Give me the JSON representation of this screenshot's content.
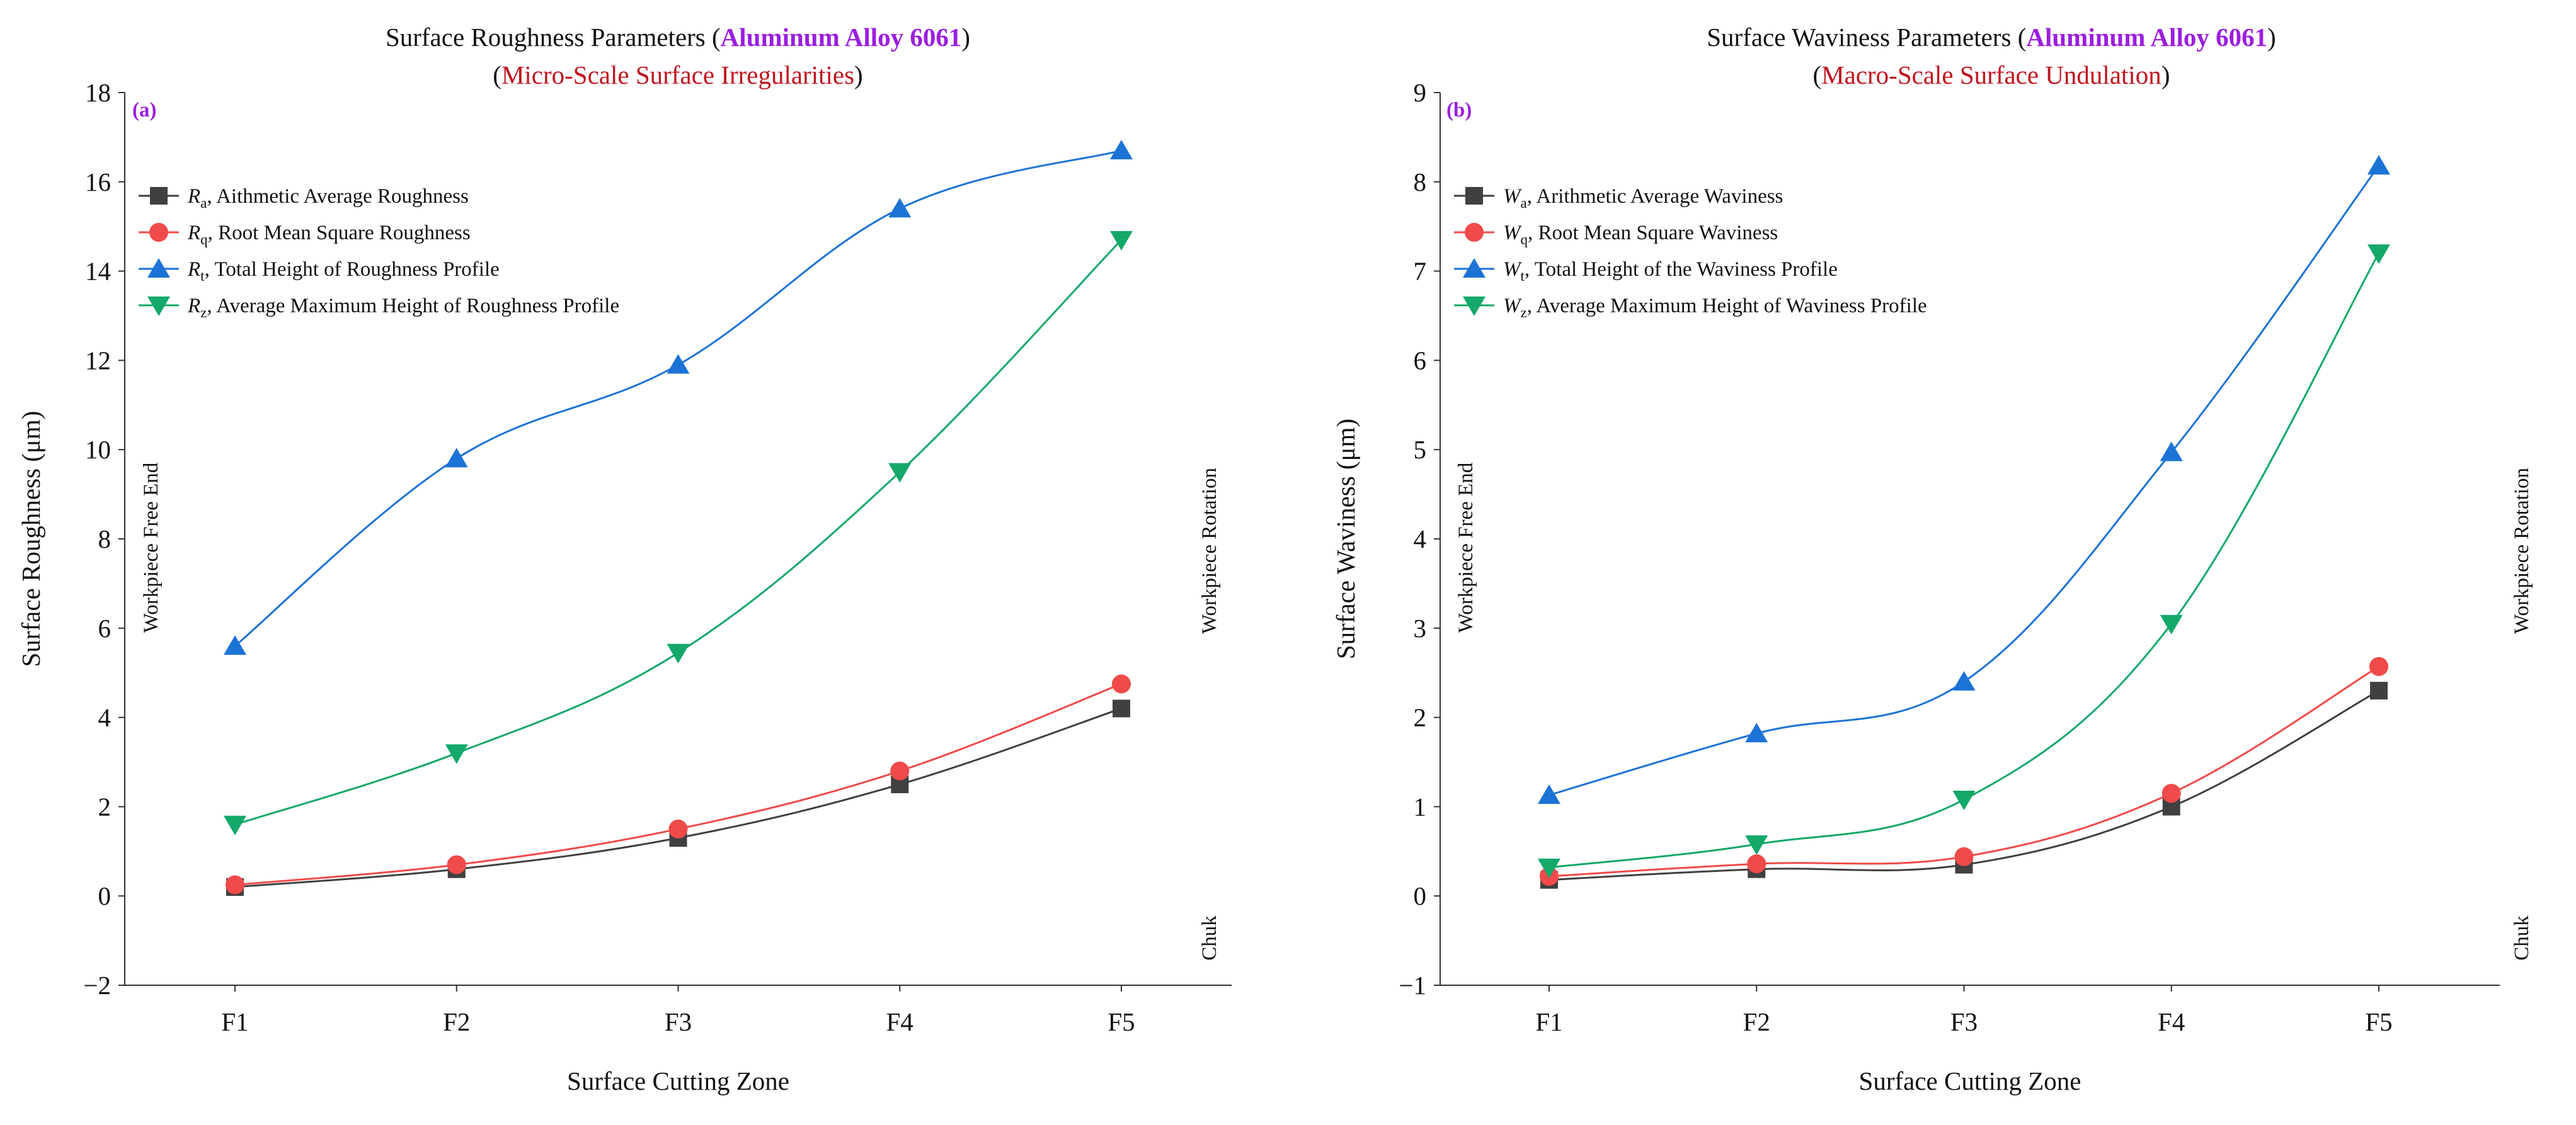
{
  "colors": {
    "black": "#404040",
    "red": "#f04a4a",
    "blue": "#1c73d6",
    "green": "#14a86a",
    "purple": "#9b1ee0",
    "darkred": "#c0141e"
  },
  "chart_data": [
    {
      "type": "line",
      "panel_label": "(a)",
      "title_prefix": "Surface Roughness Parameters (",
      "title_highlight": "Aluminum Alloy 6061",
      "title_suffix": ")",
      "subtitle_prefix": "(",
      "subtitle_highlight": "Micro-Scale Surface Irregularities",
      "subtitle_suffix": ")",
      "xlabel": "Surface Cutting Zone",
      "ylabel": "Surface Roughness (μm)",
      "categories": [
        "F1",
        "F2",
        "F3",
        "F4",
        "F5"
      ],
      "ylim": [
        -2,
        18
      ],
      "yticks": [
        -2,
        0,
        2,
        4,
        6,
        8,
        10,
        12,
        14,
        16,
        18
      ],
      "ytick_labels": [
        "−2",
        "0",
        "2",
        "4",
        "6",
        "8",
        "10",
        "12",
        "14",
        "16",
        "18"
      ],
      "annotations": {
        "left": "Workpiece Free End",
        "right_top": "Workpiece Rotation",
        "right_bottom": "Chuk"
      },
      "series": [
        {
          "symbol": "R",
          "sub": "a",
          "desc": ", Aithmetic Average Roughness",
          "marker": "square",
          "color": "#404040",
          "values": [
            0.2,
            0.6,
            1.3,
            2.5,
            4.2
          ]
        },
        {
          "symbol": "R",
          "sub": "q",
          "desc": ", Root Mean Square Roughness",
          "marker": "circle",
          "color": "#f04a4a",
          "values": [
            0.25,
            0.7,
            1.5,
            2.8,
            4.75
          ]
        },
        {
          "symbol": "R",
          "sub": "t",
          "desc": ", Total Height of Roughness Profile",
          "marker": "triangle-up",
          "color": "#1c73d6",
          "values": [
            5.6,
            9.8,
            11.9,
            15.4,
            16.7
          ]
        },
        {
          "symbol": "R",
          "sub": "z",
          "desc": ", Average Maximum Height of Roughness Profile",
          "marker": "triangle-down",
          "color": "#14a86a",
          "values": [
            1.6,
            3.2,
            5.45,
            9.5,
            14.7
          ]
        }
      ]
    },
    {
      "type": "line",
      "panel_label": "(b)",
      "title_prefix": "Surface Waviness Parameters (",
      "title_highlight": "Aluminum Alloy 6061",
      "title_suffix": ")",
      "subtitle_prefix": "(",
      "subtitle_highlight": "Macro-Scale Surface Undulation",
      "subtitle_suffix": ")",
      "xlabel": "Surface Cutting Zone",
      "ylabel": "Surface Waviness (μm)",
      "categories": [
        "F1",
        "F2",
        "F3",
        "F4",
        "F5"
      ],
      "ylim": [
        -1,
        9
      ],
      "yticks": [
        -1,
        0,
        1,
        2,
        3,
        4,
        5,
        6,
        7,
        8,
        9
      ],
      "ytick_labels": [
        "−1",
        "0",
        "1",
        "2",
        "3",
        "4",
        "5",
        "6",
        "7",
        "8",
        "9"
      ],
      "annotations": {
        "left": "Workpiece Free End",
        "right_top": "Workpiece Rotation",
        "right_bottom": "Chuk"
      },
      "series": [
        {
          "symbol": "W",
          "sub": "a",
          "desc": ", Arithmetic Average Waviness",
          "marker": "square",
          "color": "#404040",
          "values": [
            0.18,
            0.3,
            0.35,
            1.0,
            2.3
          ]
        },
        {
          "symbol": "W",
          "sub": "q",
          "desc": ", Root Mean Square Waviness",
          "marker": "circle",
          "color": "#f04a4a",
          "values": [
            0.22,
            0.36,
            0.44,
            1.15,
            2.57
          ]
        },
        {
          "symbol": "W",
          "sub": "t",
          "desc": ", Total Height of the Waviness Profile",
          "marker": "triangle-up",
          "color": "#1c73d6",
          "values": [
            1.13,
            1.82,
            2.4,
            4.97,
            8.18
          ]
        },
        {
          "symbol": "W",
          "sub": "z",
          "desc": ", Average Maximum Height of Waviness Profile",
          "marker": "triangle-down",
          "color": "#14a86a",
          "values": [
            0.32,
            0.58,
            1.08,
            3.05,
            7.2
          ]
        }
      ]
    }
  ]
}
